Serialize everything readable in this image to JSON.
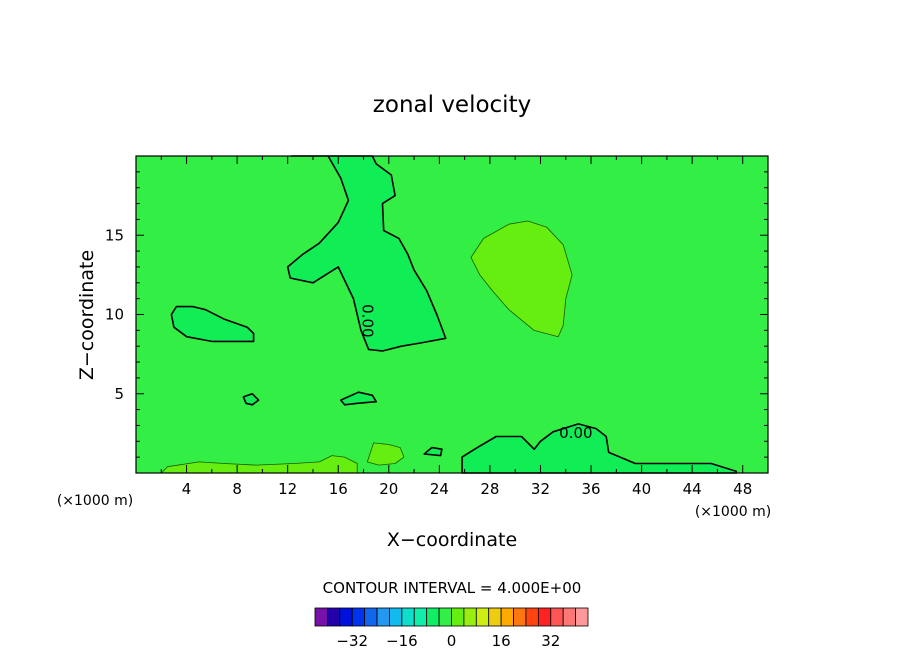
{
  "chart_data": {
    "type": "contour",
    "title": "zonal velocity",
    "xlabel": "X−coordinate",
    "ylabel": "Z−coordinate",
    "x_unit": "(×1000 m)",
    "x_ticks": [
      4,
      8,
      12,
      16,
      20,
      24,
      28,
      32,
      36,
      40,
      44,
      48
    ],
    "y_ticks": [
      5,
      10,
      15
    ],
    "xlim": [
      0,
      50
    ],
    "ylim": [
      0,
      20
    ],
    "contour_label": "0.00",
    "contour_interval_text": "CONTOUR INTERVAL = 4.000E+00",
    "colors": {
      "background": "#33ee44",
      "weak_positive": "#66ee11",
      "weak_negative": "#11ee55"
    },
    "regions": [
      {
        "sign": "negative",
        "polygon": [
          [
            12.3,
            20
          ],
          [
            15.2,
            20
          ],
          [
            16.2,
            18.6
          ],
          [
            16.8,
            17.2
          ],
          [
            16,
            15.8
          ],
          [
            14.5,
            14.5
          ],
          [
            13.2,
            13.8
          ],
          [
            12,
            13
          ],
          [
            12.2,
            12.3
          ],
          [
            14,
            12
          ],
          [
            16,
            13
          ],
          [
            17.2,
            11
          ],
          [
            17.8,
            9
          ],
          [
            18.4,
            7.8
          ],
          [
            19.5,
            7.7
          ],
          [
            21,
            8
          ],
          [
            22.5,
            8.2
          ],
          [
            24.5,
            8.5
          ],
          [
            23.8,
            10
          ],
          [
            23,
            11.5
          ],
          [
            22,
            12.8
          ],
          [
            21.5,
            13.8
          ],
          [
            20.8,
            14.8
          ],
          [
            19.6,
            15.3
          ],
          [
            19.5,
            17
          ],
          [
            20.5,
            17.5
          ],
          [
            20.2,
            18.8
          ],
          [
            19,
            19.5
          ],
          [
            18.7,
            20
          ]
        ]
      },
      {
        "sign": "negative",
        "polygon": [
          [
            2.8,
            10
          ],
          [
            3.2,
            10.5
          ],
          [
            4.5,
            10.5
          ],
          [
            5.5,
            10.3
          ],
          [
            7,
            9.7
          ],
          [
            8.8,
            9.2
          ],
          [
            9.3,
            8.8
          ],
          [
            9.3,
            8.3
          ],
          [
            6,
            8.3
          ],
          [
            4,
            8.6
          ],
          [
            3,
            9.2
          ]
        ]
      },
      {
        "sign": "negative",
        "polygon": [
          [
            8.5,
            4.8
          ],
          [
            9.2,
            5
          ],
          [
            9.7,
            4.6
          ],
          [
            9.2,
            4.3
          ],
          [
            8.7,
            4.4
          ]
        ]
      },
      {
        "sign": "negative",
        "polygon": [
          [
            16.2,
            4.6
          ],
          [
            17.6,
            5.1
          ],
          [
            18.7,
            4.9
          ],
          [
            19,
            4.5
          ],
          [
            17.5,
            4.4
          ],
          [
            16.5,
            4.3
          ]
        ]
      },
      {
        "sign": "negative",
        "polygon": [
          [
            22.8,
            1.2
          ],
          [
            23.4,
            1.6
          ],
          [
            24.2,
            1.5
          ],
          [
            24.1,
            1.1
          ]
        ]
      },
      {
        "sign": "negative",
        "polygon": [
          [
            25.8,
            0
          ],
          [
            25.8,
            1
          ],
          [
            27,
            1.6
          ],
          [
            28.5,
            2.3
          ],
          [
            30.5,
            2.3
          ],
          [
            31.5,
            1.5
          ],
          [
            32,
            2
          ],
          [
            33,
            2.6
          ],
          [
            35,
            3.1
          ],
          [
            36.4,
            2.8
          ],
          [
            37.2,
            2.3
          ],
          [
            37.4,
            1.3
          ],
          [
            38.3,
            1
          ],
          [
            39.5,
            0.6
          ],
          [
            43,
            0.6
          ],
          [
            45.5,
            0.6
          ],
          [
            47.5,
            0.1
          ],
          [
            47.5,
            0
          ]
        ]
      },
      {
        "sign": "positive",
        "polygon": [
          [
            26.5,
            13.6
          ],
          [
            27.5,
            14.8
          ],
          [
            29.5,
            15.7
          ],
          [
            31,
            15.9
          ],
          [
            32.5,
            15.5
          ],
          [
            33.8,
            14.4
          ],
          [
            34.5,
            12.5
          ],
          [
            34,
            11
          ],
          [
            33.8,
            9.3
          ],
          [
            33.4,
            8.6
          ],
          [
            31.5,
            9
          ],
          [
            29.5,
            10.3
          ],
          [
            28.2,
            11.5
          ],
          [
            27.2,
            12.5
          ]
        ]
      },
      {
        "sign": "positive",
        "polygon": [
          [
            18.3,
            0.7
          ],
          [
            18.8,
            1.9
          ],
          [
            20,
            1.8
          ],
          [
            20.9,
            1.6
          ],
          [
            21.2,
            1
          ],
          [
            20.5,
            0.6
          ],
          [
            19.2,
            0.5
          ]
        ]
      },
      {
        "sign": "positive",
        "polygon": [
          [
            2,
            0
          ],
          [
            2.5,
            0.4
          ],
          [
            5,
            0.7
          ],
          [
            7,
            0.6
          ],
          [
            9.5,
            0.5
          ],
          [
            12.5,
            0.6
          ],
          [
            14.5,
            0.7
          ],
          [
            15.5,
            1.1
          ],
          [
            16.5,
            1
          ],
          [
            17.5,
            0.6
          ],
          [
            17.5,
            0
          ],
          [
            2,
            0
          ]
        ]
      }
    ],
    "colorbar": {
      "colors": [
        "#7711aa",
        "#2200aa",
        "#0011dd",
        "#0033ee",
        "#1166ee",
        "#2299ee",
        "#11bbee",
        "#11ddcc",
        "#11eeaa",
        "#11ee66",
        "#33ee44",
        "#66ee11",
        "#99ee11",
        "#ccee11",
        "#eecc11",
        "#ffaa00",
        "#ff7711",
        "#ff4411",
        "#ff2222",
        "#ff5555",
        "#ff7777",
        "#ff9999"
      ],
      "tick_labels": [
        "−32",
        "−16",
        "0",
        "16",
        "32"
      ],
      "tick_values": [
        -32,
        -16,
        0,
        16,
        32
      ],
      "vmin": -44,
      "vmax": 44
    }
  }
}
